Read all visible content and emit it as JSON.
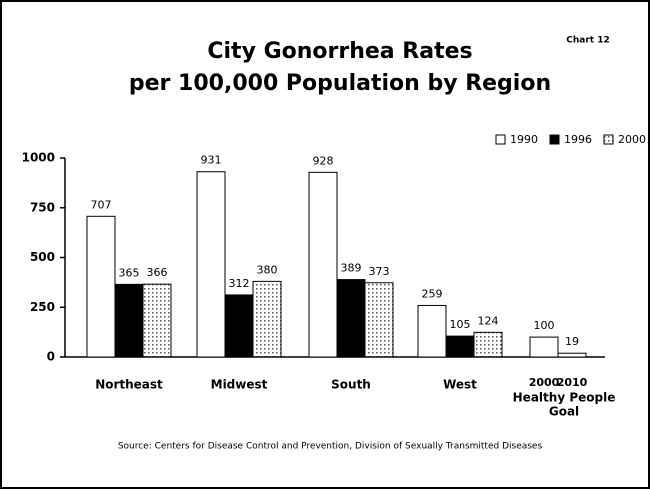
{
  "chart_data": {
    "type": "bar",
    "title_lines": [
      "City Gonorrhea Rates",
      "per 100,000 Population by Region"
    ],
    "chart_number": "Chart 12",
    "source": "Source: Centers for Disease Control and Prevention, Division of Sexually Transmitted Diseases",
    "categories": [
      "Northeast",
      "Midwest",
      "South",
      "West"
    ],
    "series": [
      {
        "name": "1990",
        "color": "#ffffff",
        "values": [
          707,
          931,
          928,
          259
        ]
      },
      {
        "name": "1996",
        "color": "#000000",
        "values": [
          365,
          312,
          389,
          105
        ]
      },
      {
        "name": "2000",
        "color": "#b8b8b8",
        "values": [
          366,
          380,
          373,
          124
        ]
      }
    ],
    "goal": {
      "label_lines": [
        "Healthy People",
        "Goal"
      ],
      "categories": [
        "2000",
        "2010"
      ],
      "values": [
        100,
        19
      ],
      "color": "#ffffff"
    },
    "ylim": [
      0,
      1000
    ],
    "yticks": [
      0,
      250,
      500,
      750,
      1000
    ],
    "grid": false
  }
}
